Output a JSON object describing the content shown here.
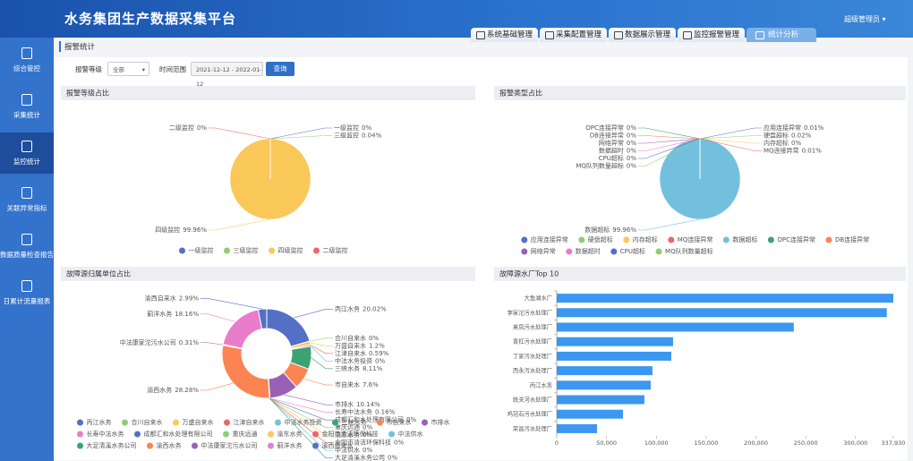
{
  "header": {
    "title": "水务集团生产数据采集平台",
    "user": "超级管理员",
    "tabs": [
      "系统基础管理",
      "采集配置管理",
      "数据展示管理",
      "监控报警管理",
      "统计分析"
    ]
  },
  "sidebar": {
    "items": [
      "综合管控",
      "采集统计",
      "监控统计",
      "关联异常指标",
      "数据质量检查报告",
      "日累计流量报表"
    ]
  },
  "breadcrumb": "报警统计",
  "filters": {
    "level_label": "报警等级",
    "level_value": "全部",
    "range_label": "时间范围",
    "range_value": "2021-12-12 - 2022-01-12",
    "button": "查询"
  },
  "chart_data": [
    {
      "type": "pie",
      "title": "报警等级占比",
      "categories": [
        "一级监控",
        "三级监控",
        "四级监控",
        "二级监控"
      ],
      "values": [
        0,
        0.04,
        99.96,
        0
      ],
      "value_labels": [
        "0%",
        "0.04%",
        "99.96%",
        "0%"
      ],
      "colors": [
        "#5470c6",
        "#91cc75",
        "#fac858",
        "#ee6666"
      ]
    },
    {
      "type": "pie",
      "title": "报警类型占比",
      "categories": [
        "应用连接异常",
        "硬盘超标",
        "内存超标",
        "MQ连接异常",
        "数据超标",
        "OPC连接异常",
        "DB连接异常",
        "网络异常",
        "数据超时",
        "CPU超标",
        "MQ队列数量超标"
      ],
      "values": [
        0.01,
        0.02,
        0,
        0.01,
        99.96,
        0,
        0,
        0,
        0,
        0,
        0
      ],
      "value_labels": [
        "0.01%",
        "0.02%",
        "0%",
        "0.01%",
        "99.96%",
        "0%",
        "0%",
        "0%",
        "0%",
        "0%",
        "0%"
      ],
      "colors": [
        "#5470c6",
        "#91cc75",
        "#fac858",
        "#ee6666",
        "#73c0de",
        "#3ba272",
        "#fc8452",
        "#9a60b4",
        "#ea7ccc",
        "#5470c6",
        "#91cc75"
      ]
    },
    {
      "type": "donut",
      "title": "故障源归属单位占比",
      "categories": [
        "丙江水务",
        "合川自来水",
        "万盛自来水",
        "江津自来水",
        "中法水务投资",
        "三峡水务",
        "市自来水",
        "市排水",
        "长寿中法水务",
        "成都汇和水处理有限公司",
        "重庆远通",
        "渝东水务",
        "金阳市清洁环保科技",
        "中法供水",
        "大足清溪水务公司",
        "渝西水务",
        "中法康家沱污水公司",
        "蓟洋水务",
        "渝西自来水"
      ],
      "values": [
        20.02,
        0,
        1.2,
        0.59,
        0,
        8.11,
        7.6,
        10.14,
        0.16,
        0,
        0,
        0,
        0,
        0,
        0,
        28.28,
        0.31,
        18.16,
        2.99
      ],
      "value_labels": [
        "20.02%",
        "0%",
        "1.2%",
        "0.59%",
        "0%",
        "8.11%",
        "7.6%",
        "10.14%",
        "0.16%",
        "0%",
        "0%",
        "0%",
        "0%",
        "0%",
        "0%",
        "28.28%",
        "0.31%",
        "18.16%",
        "2.99%"
      ],
      "colors": [
        "#5470c6",
        "#91cc75",
        "#fac858",
        "#ee6666",
        "#73c0de",
        "#3ba272",
        "#fc8452",
        "#9a60b4",
        "#ea7ccc",
        "#5470c6",
        "#91cc75",
        "#fac858",
        "#ee6666",
        "#73c0de",
        "#3ba272",
        "#fc8452",
        "#9a60b4",
        "#ea7ccc",
        "#5470c6"
      ]
    },
    {
      "type": "hbar",
      "title": "故障源水厂Top 10",
      "categories": [
        "大鱼湖水厂",
        "李家沱污水处理厂",
        "来凤污水处理厂",
        "青杠污水处理厂",
        "丁家污水处理厂",
        "西永污水处理厂",
        "丙江水务",
        "统关河水处理厂",
        "鸡冠石污水处理厂",
        "荣昌污水处理厂"
      ],
      "values": [
        337930,
        331400,
        238000,
        116800,
        115000,
        96100,
        94300,
        88000,
        66500,
        40400
      ],
      "color": "#3c97f0",
      "xlim": [
        0,
        337930
      ],
      "xticks": [
        0,
        {
          "value": 50000,
          "label": "50,000"
        },
        {
          "value": 100000,
          "label": "100,000"
        },
        {
          "value": 150000,
          "label": "150,000"
        },
        {
          "value": 200000,
          "label": "200,000"
        },
        {
          "value": 250000,
          "label": "250,000"
        },
        {
          "value": 300000,
          "label": "300,000"
        },
        {
          "value": 337930,
          "label": "337,930"
        }
      ]
    }
  ]
}
